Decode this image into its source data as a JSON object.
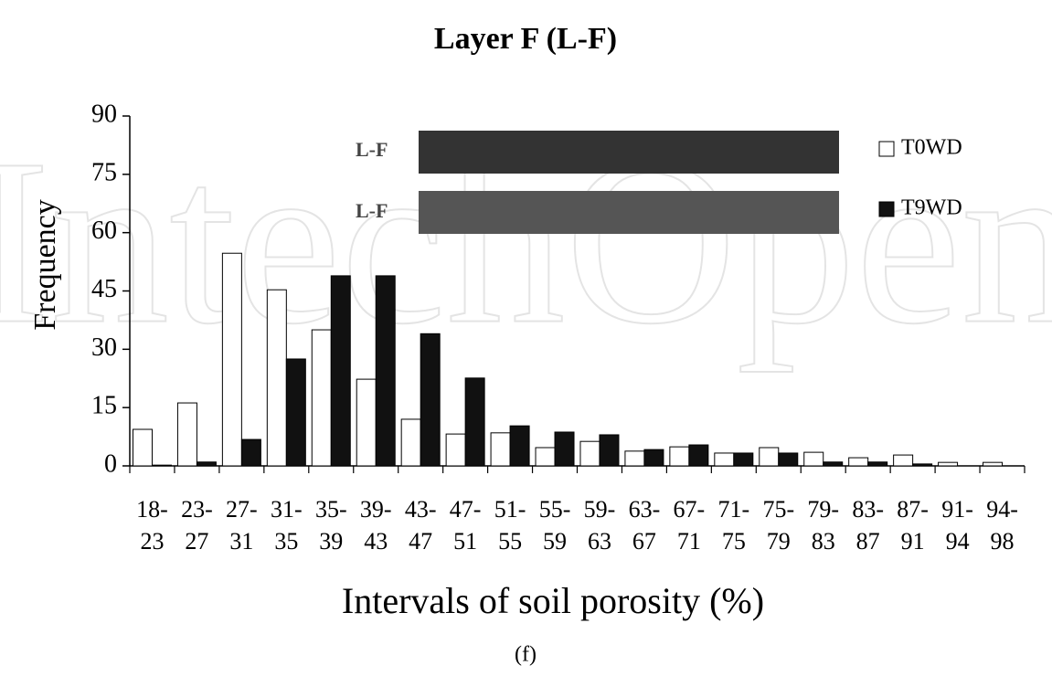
{
  "chart_data": {
    "type": "bar",
    "title": "Layer F (L-F)",
    "caption": "(f)",
    "x_label": "Intervals of soil porosity (%)",
    "y_label": "Frequency",
    "inset_labels": [
      "L-F",
      "L-F"
    ],
    "watermark": "IntechOpen",
    "categories": [
      "18-23",
      "23-27",
      "27-31",
      "31-35",
      "35-39",
      "39-43",
      "43-47",
      "47-51",
      "51-55",
      "55-59",
      "59-63",
      "63-67",
      "67-71",
      "71-75",
      "75-79",
      "79-83",
      "83-87",
      "87-91",
      "91-94",
      "94-98"
    ],
    "series": [
      {
        "name": "T0WD",
        "color": "#ffffff",
        "values": [
          9.4,
          16.2,
          54.7,
          45.3,
          35,
          22.3,
          12,
          8.2,
          8.5,
          4.7,
          6.3,
          3.8,
          4.9,
          3.3,
          4.7,
          3.5,
          2.1,
          2.8,
          0.9,
          0.9
        ]
      },
      {
        "name": "T9WD",
        "color": "#111111",
        "values": [
          0.2,
          1,
          6.8,
          27.5,
          48.9,
          48.9,
          34,
          22.6,
          10.3,
          8.7,
          8,
          4.2,
          5.4,
          3.3,
          3.3,
          1,
          1,
          0.5,
          0,
          0
        ]
      }
    ],
    "ylim": [
      0,
      90
    ],
    "yticks": [
      0,
      15,
      30,
      45,
      60,
      75,
      90
    ],
    "grid": false,
    "legend": "top-right"
  }
}
